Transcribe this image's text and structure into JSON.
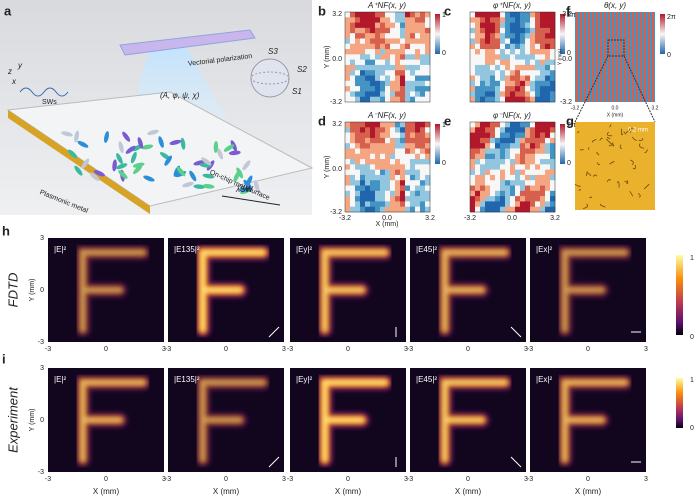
{
  "labels": [
    "a",
    "b",
    "c",
    "d",
    "e",
    "f",
    "g",
    "h",
    "i"
  ],
  "panel_a": {
    "polarization": "Vectorial polarization",
    "params": "(A, φ, ψ, χ)",
    "waves": "SWs",
    "metasurface": "On-chip metasurface",
    "metal": "Plasmonic metal",
    "wavelength": "λSW",
    "stokes": [
      "S1",
      "S2",
      "S3"
    ],
    "axes": [
      "x",
      "y",
      "z"
    ]
  },
  "maps": {
    "titles": [
      "A⁺NF(x, y)",
      "φ⁺NF(x, y)",
      "A⁻NF(x, y)",
      "φ⁻NF(x, y)",
      "θ(x, y)"
    ],
    "yticks": [
      "3.2",
      "0.0",
      "-3.2"
    ],
    "xticks": [
      "-3.2",
      "0.0",
      "3.2"
    ],
    "ylabel": "Y (mm)",
    "xlabel": "X (mm)",
    "cbar_amp": [
      "1",
      "0"
    ],
    "cbar_phase": [
      "2π",
      "0"
    ],
    "scale": "0.2 mm"
  },
  "rows": [
    {
      "label": "FDTD",
      "panels": [
        "|E|²",
        "|E135|²",
        "|Ey|²",
        "|E45|²",
        "|Ex|²"
      ]
    },
    {
      "label": "Experiment",
      "panels": [
        "|E|²",
        "|E135|²",
        "|Ey|²",
        "|E45|²",
        "|Ex|²"
      ]
    }
  ],
  "field_axes": {
    "yticks": [
      "3",
      "0",
      "-3"
    ],
    "xticks": [
      "-3",
      "0",
      "3"
    ],
    "ylabel": "Y (mm)",
    "xlabel": "X (mm)",
    "cbar": [
      "1",
      "0"
    ]
  }
}
